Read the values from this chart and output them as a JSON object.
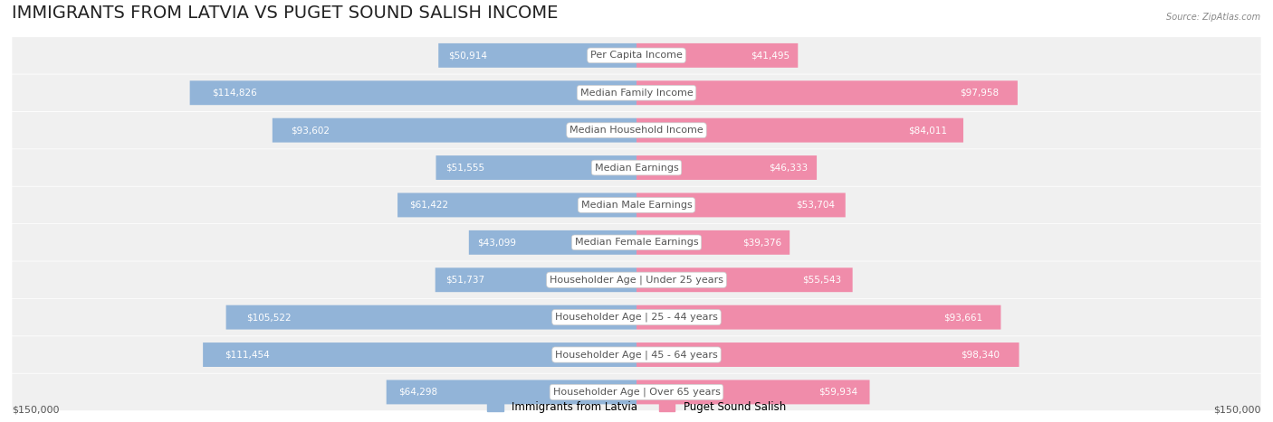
{
  "title": "IMMIGRANTS FROM LATVIA VS PUGET SOUND SALISH INCOME",
  "source": "Source: ZipAtlas.com",
  "categories": [
    "Per Capita Income",
    "Median Family Income",
    "Median Household Income",
    "Median Earnings",
    "Median Male Earnings",
    "Median Female Earnings",
    "Householder Age | Under 25 years",
    "Householder Age | 25 - 44 years",
    "Householder Age | 45 - 64 years",
    "Householder Age | Over 65 years"
  ],
  "latvia_values": [
    50914,
    114826,
    93602,
    51555,
    61422,
    43099,
    51737,
    105522,
    111454,
    64298
  ],
  "salish_values": [
    41495,
    97958,
    84011,
    46333,
    53704,
    39376,
    55543,
    93661,
    98340,
    59934
  ],
  "max_val": 150000,
  "latvia_color": "#92b4d8",
  "salish_color": "#f08caa",
  "latvia_label": "Immigrants from Latvia",
  "salish_label": "Puget Sound Salish",
  "row_bg_color": "#f0f0f0",
  "label_bg_color": "#ffffff",
  "label_font_color": "#555555",
  "value_color_inside": "#ffffff",
  "value_color_outside": "#555555",
  "axis_label": "$150,000",
  "bg_color": "#ffffff",
  "title_fontsize": 14,
  "label_fontsize": 8,
  "value_fontsize": 7.5
}
